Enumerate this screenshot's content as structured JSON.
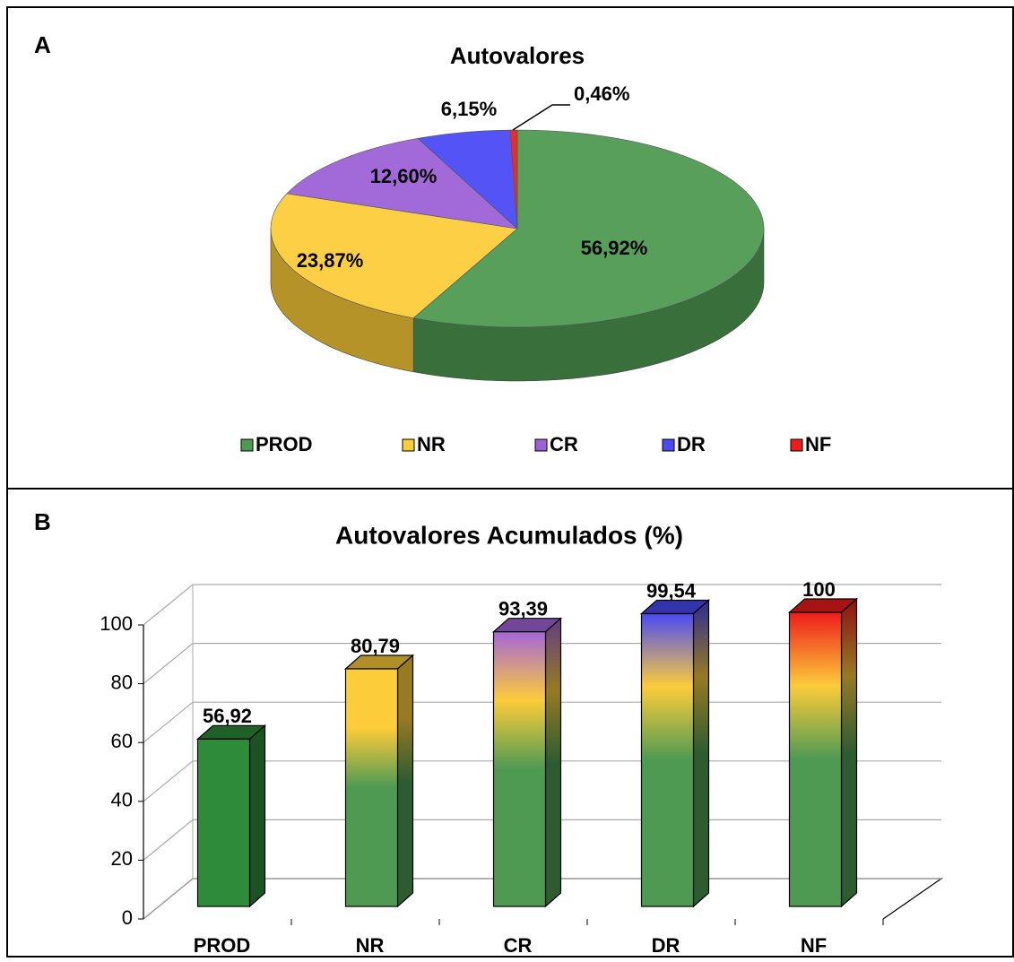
{
  "chart_data": [
    {
      "type": "pie",
      "panel_label": "A",
      "title": "Autovalores",
      "categories": [
        "PROD",
        "NR",
        "CR",
        "DR",
        "NF"
      ],
      "values": [
        56.92,
        23.87,
        12.6,
        6.15,
        0.46
      ],
      "value_labels": [
        "56,92%",
        "23,87%",
        "12,60%",
        "6,15%",
        "0,46%"
      ],
      "colors": [
        "#4e9a52",
        "#fccc3a",
        "#9d62d6",
        "#4a4af5",
        "#ee1c1c"
      ],
      "legend": "bottom"
    },
    {
      "type": "bar",
      "panel_label": "B",
      "title": "Autovalores Acumulados (%)",
      "categories": [
        "PROD",
        "NR",
        "CR",
        "DR",
        "NF"
      ],
      "values": [
        56.92,
        80.79,
        93.39,
        99.54,
        100
      ],
      "value_labels": [
        "56,92",
        "80,79",
        "93,39",
        "99,54",
        "100"
      ],
      "colors": [
        "#2e8b3a",
        "#fccc3a",
        "#a566d8",
        "#4a4af5",
        "#ee1c1c"
      ],
      "ylim": [
        0,
        100
      ],
      "yticks": [
        0,
        20,
        40,
        60,
        80,
        100
      ],
      "grid": true
    }
  ]
}
